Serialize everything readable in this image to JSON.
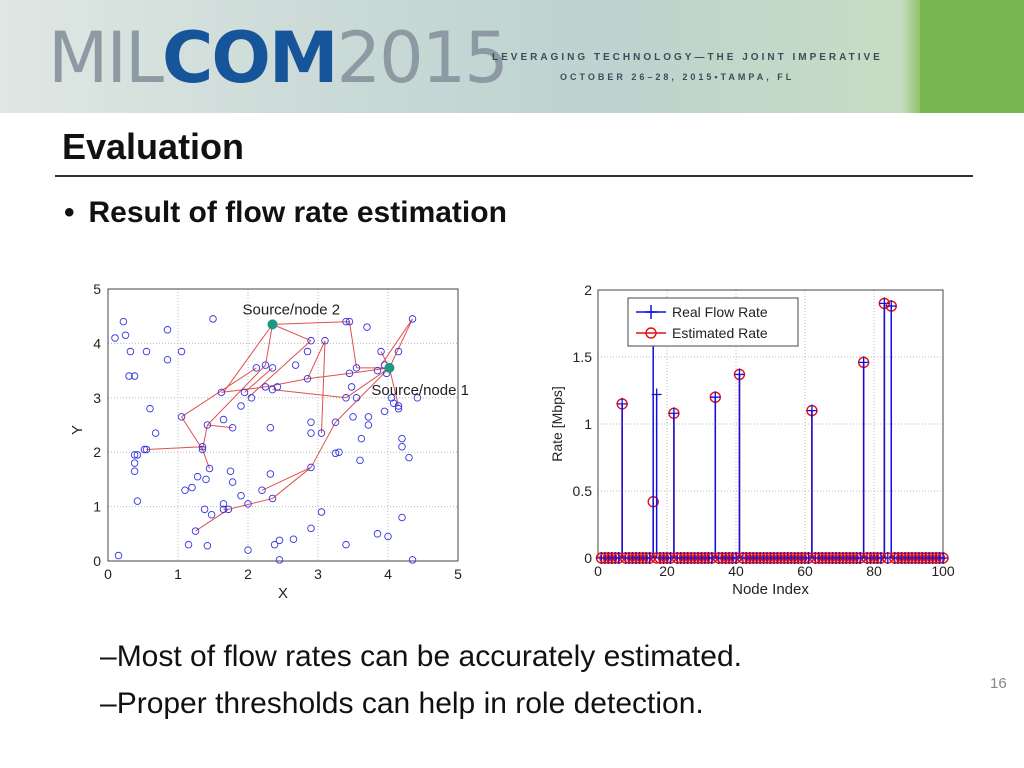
{
  "header": {
    "logo_mil": "MIL",
    "logo_com": "COM",
    "logo_year": "2015",
    "tagline": "LEVERAGING TECHNOLOGY—THE JOINT IMPERATIVE",
    "dates": "OCTOBER 26–28, 2015•TAMPA, FL"
  },
  "slide": {
    "title": "Evaluation",
    "bullet": "Result of flow rate estimation",
    "sub_bullets": [
      "Most of flow rates can be accurately estimated.",
      "Proper thresholds can help in role detection."
    ],
    "page_number": "16"
  },
  "colors": {
    "nodes": "#3535e0",
    "links": "#e05050",
    "source": "#1a9a80",
    "real": "#1010e0",
    "estimated": "#e01010"
  },
  "chart_data": [
    {
      "type": "scatter",
      "xlabel": "X",
      "ylabel": "Y",
      "xlim": [
        0,
        5
      ],
      "ylim": [
        0,
        5
      ],
      "xticks": [
        "0",
        "1",
        "2",
        "3",
        "4",
        "5"
      ],
      "yticks": [
        "0",
        "1",
        "2",
        "3",
        "4",
        "5"
      ],
      "grid": true,
      "annotations": [
        {
          "text": "Source/node 2",
          "x": 2.35,
          "y": 4.35
        },
        {
          "text": "Source/node 1",
          "x": 4.02,
          "y": 3.55
        }
      ],
      "sources": [
        [
          2.35,
          4.35
        ],
        [
          4.02,
          3.55
        ]
      ],
      "nodes": [
        [
          0.1,
          4.1
        ],
        [
          0.22,
          4.4
        ],
        [
          0.25,
          4.15
        ],
        [
          0.32,
          3.85
        ],
        [
          0.3,
          3.4
        ],
        [
          0.38,
          3.4
        ],
        [
          0.55,
          3.85
        ],
        [
          0.85,
          3.7
        ],
        [
          0.85,
          4.25
        ],
        [
          1.05,
          3.85
        ],
        [
          0.6,
          2.8
        ],
        [
          0.68,
          2.35
        ],
        [
          0.52,
          2.05
        ],
        [
          0.55,
          2.05
        ],
        [
          0.38,
          1.95
        ],
        [
          0.42,
          1.95
        ],
        [
          0.38,
          1.8
        ],
        [
          0.38,
          1.65
        ],
        [
          0.42,
          1.1
        ],
        [
          0.15,
          0.1
        ],
        [
          1.05,
          2.65
        ],
        [
          1.35,
          2.1
        ],
        [
          1.35,
          2.05
        ],
        [
          1.42,
          2.5
        ],
        [
          1.45,
          1.7
        ],
        [
          1.1,
          1.3
        ],
        [
          1.2,
          1.35
        ],
        [
          1.28,
          1.55
        ],
        [
          1.38,
          0.95
        ],
        [
          1.48,
          0.85
        ],
        [
          1.25,
          0.55
        ],
        [
          1.15,
          0.3
        ],
        [
          1.42,
          0.28
        ],
        [
          1.65,
          1.05
        ],
        [
          1.65,
          0.95
        ],
        [
          1.72,
          0.95
        ],
        [
          1.75,
          1.65
        ],
        [
          1.78,
          1.45
        ],
        [
          1.65,
          2.6
        ],
        [
          1.78,
          2.45
        ],
        [
          1.5,
          4.45
        ],
        [
          1.62,
          3.1
        ],
        [
          1.95,
          3.1
        ],
        [
          1.9,
          2.85
        ],
        [
          2.05,
          3.0
        ],
        [
          2.12,
          3.55
        ],
        [
          2.25,
          3.6
        ],
        [
          2.35,
          3.55
        ],
        [
          2.25,
          3.2
        ],
        [
          2.35,
          3.15
        ],
        [
          2.42,
          3.2
        ],
        [
          2.0,
          1.05
        ],
        [
          2.0,
          0.2
        ],
        [
          2.2,
          1.3
        ],
        [
          2.32,
          1.6
        ],
        [
          2.35,
          1.15
        ],
        [
          2.38,
          0.3
        ],
        [
          2.45,
          0.38
        ],
        [
          2.45,
          0.02
        ],
        [
          2.32,
          2.45
        ],
        [
          2.68,
          3.6
        ],
        [
          2.85,
          3.85
        ],
        [
          2.9,
          4.05
        ],
        [
          2.85,
          3.35
        ],
        [
          2.9,
          2.55
        ],
        [
          2.9,
          2.35
        ],
        [
          2.9,
          1.72
        ],
        [
          3.05,
          2.35
        ],
        [
          3.05,
          0.9
        ],
        [
          3.1,
          4.05
        ],
        [
          3.25,
          1.98
        ],
        [
          3.3,
          2.0
        ],
        [
          3.25,
          2.55
        ],
        [
          3.4,
          4.4
        ],
        [
          3.45,
          4.4
        ],
        [
          3.45,
          3.45
        ],
        [
          3.48,
          3.2
        ],
        [
          3.4,
          3.0
        ],
        [
          3.55,
          3.0
        ],
        [
          3.55,
          3.55
        ],
        [
          3.5,
          2.65
        ],
        [
          3.62,
          2.25
        ],
        [
          3.6,
          1.85
        ],
        [
          3.72,
          2.5
        ],
        [
          3.72,
          2.65
        ],
        [
          3.7,
          4.3
        ],
        [
          3.9,
          3.85
        ],
        [
          3.85,
          3.5
        ],
        [
          3.95,
          3.6
        ],
        [
          3.95,
          2.75
        ],
        [
          3.98,
          3.45
        ],
        [
          4.05,
          3.0
        ],
        [
          4.08,
          2.9
        ],
        [
          4.15,
          2.85
        ],
        [
          4.15,
          3.85
        ],
        [
          4.15,
          2.8
        ],
        [
          4.2,
          2.1
        ],
        [
          4.2,
          2.25
        ],
        [
          4.3,
          1.9
        ],
        [
          4.35,
          4.45
        ],
        [
          4.35,
          0.02
        ],
        [
          4.2,
          0.8
        ],
        [
          4.42,
          3.0
        ],
        [
          3.4,
          0.3
        ],
        [
          2.65,
          0.4
        ],
        [
          3.85,
          0.5
        ],
        [
          4.0,
          0.45
        ],
        [
          2.9,
          0.6
        ],
        [
          1.4,
          1.5
        ],
        [
          1.9,
          1.2
        ]
      ],
      "links": [
        [
          [
            2.35,
            4.35
          ],
          [
            2.9,
            4.05
          ]
        ],
        [
          [
            2.35,
            4.35
          ],
          [
            3.45,
            4.4
          ]
        ],
        [
          [
            2.35,
            4.35
          ],
          [
            2.25,
            3.6
          ]
        ],
        [
          [
            2.35,
            4.35
          ],
          [
            1.65,
            3.1
          ]
        ],
        [
          [
            3.45,
            4.4
          ],
          [
            3.55,
            3.55
          ]
        ],
        [
          [
            3.55,
            3.55
          ],
          [
            4.02,
            3.55
          ]
        ],
        [
          [
            4.35,
            4.45
          ],
          [
            4.02,
            3.55
          ]
        ],
        [
          [
            3.9,
            3.85
          ],
          [
            4.02,
            3.55
          ]
        ],
        [
          [
            3.1,
            4.05
          ],
          [
            2.85,
            3.35
          ]
        ],
        [
          [
            2.9,
            4.05
          ],
          [
            2.0,
            3.0
          ]
        ],
        [
          [
            2.25,
            3.6
          ],
          [
            1.42,
            2.5
          ]
        ],
        [
          [
            1.42,
            2.5
          ],
          [
            1.35,
            2.05
          ]
        ],
        [
          [
            1.35,
            2.05
          ],
          [
            1.45,
            1.7
          ]
        ],
        [
          [
            1.05,
            2.65
          ],
          [
            2.12,
            3.55
          ]
        ],
        [
          [
            1.05,
            2.65
          ],
          [
            1.35,
            2.05
          ]
        ],
        [
          [
            0.55,
            2.05
          ],
          [
            1.35,
            2.1
          ]
        ],
        [
          [
            1.62,
            3.1
          ],
          [
            2.25,
            3.2
          ]
        ],
        [
          [
            2.25,
            3.2
          ],
          [
            2.85,
            3.35
          ]
        ],
        [
          [
            2.85,
            3.35
          ],
          [
            3.45,
            3.45
          ]
        ],
        [
          [
            2.35,
            3.15
          ],
          [
            3.4,
            3.0
          ]
        ],
        [
          [
            3.4,
            3.0
          ],
          [
            4.02,
            3.55
          ]
        ],
        [
          [
            3.45,
            3.45
          ],
          [
            4.02,
            3.55
          ]
        ],
        [
          [
            4.02,
            3.55
          ],
          [
            4.15,
            2.85
          ]
        ],
        [
          [
            4.02,
            3.55
          ],
          [
            3.25,
            2.55
          ]
        ],
        [
          [
            3.25,
            2.55
          ],
          [
            2.9,
            1.72
          ]
        ],
        [
          [
            2.9,
            1.72
          ],
          [
            2.35,
            1.15
          ]
        ],
        [
          [
            2.35,
            1.15
          ],
          [
            1.72,
            0.95
          ]
        ],
        [
          [
            1.72,
            0.95
          ],
          [
            1.25,
            0.55
          ]
        ],
        [
          [
            2.9,
            1.72
          ],
          [
            2.2,
            1.3
          ]
        ],
        [
          [
            1.78,
            2.45
          ],
          [
            1.42,
            2.5
          ]
        ],
        [
          [
            1.65,
            0.95
          ],
          [
            1.72,
            0.95
          ]
        ],
        [
          [
            2.35,
            3.55
          ],
          [
            1.95,
            3.1
          ]
        ],
        [
          [
            3.1,
            4.05
          ],
          [
            3.05,
            2.35
          ]
        ],
        [
          [
            4.35,
            4.45
          ],
          [
            3.9,
            3.6
          ]
        ]
      ]
    },
    {
      "type": "stem",
      "xlabel": "Node Index",
      "ylabel": "Rate [Mbps]",
      "xlim": [
        0,
        100
      ],
      "ylim": [
        0,
        2
      ],
      "xticks": [
        "0",
        "20",
        "40",
        "60",
        "80",
        "100"
      ],
      "yticks": [
        "0",
        "0.5",
        "1",
        "1.5",
        "2"
      ],
      "grid": true,
      "legend_position": "top-left",
      "series": [
        {
          "name": "Real Flow Rate",
          "marker": "plus",
          "nonzero": [
            [
              7,
              1.15
            ],
            [
              16,
              1.65
            ],
            [
              17,
              1.22
            ],
            [
              22,
              1.08
            ],
            [
              34,
              1.2
            ],
            [
              41,
              1.37
            ],
            [
              62,
              1.1
            ],
            [
              77,
              1.46
            ],
            [
              83,
              1.9
            ],
            [
              85,
              1.88
            ]
          ]
        },
        {
          "name": "Estimated Rate",
          "marker": "circle",
          "nonzero": [
            [
              7,
              1.15
            ],
            [
              16,
              0.42
            ],
            [
              22,
              1.08
            ],
            [
              34,
              1.2
            ],
            [
              41,
              1.37
            ],
            [
              62,
              1.1
            ],
            [
              77,
              1.46
            ],
            [
              83,
              1.9
            ],
            [
              85,
              1.88
            ]
          ]
        }
      ],
      "n_points": 100
    }
  ]
}
